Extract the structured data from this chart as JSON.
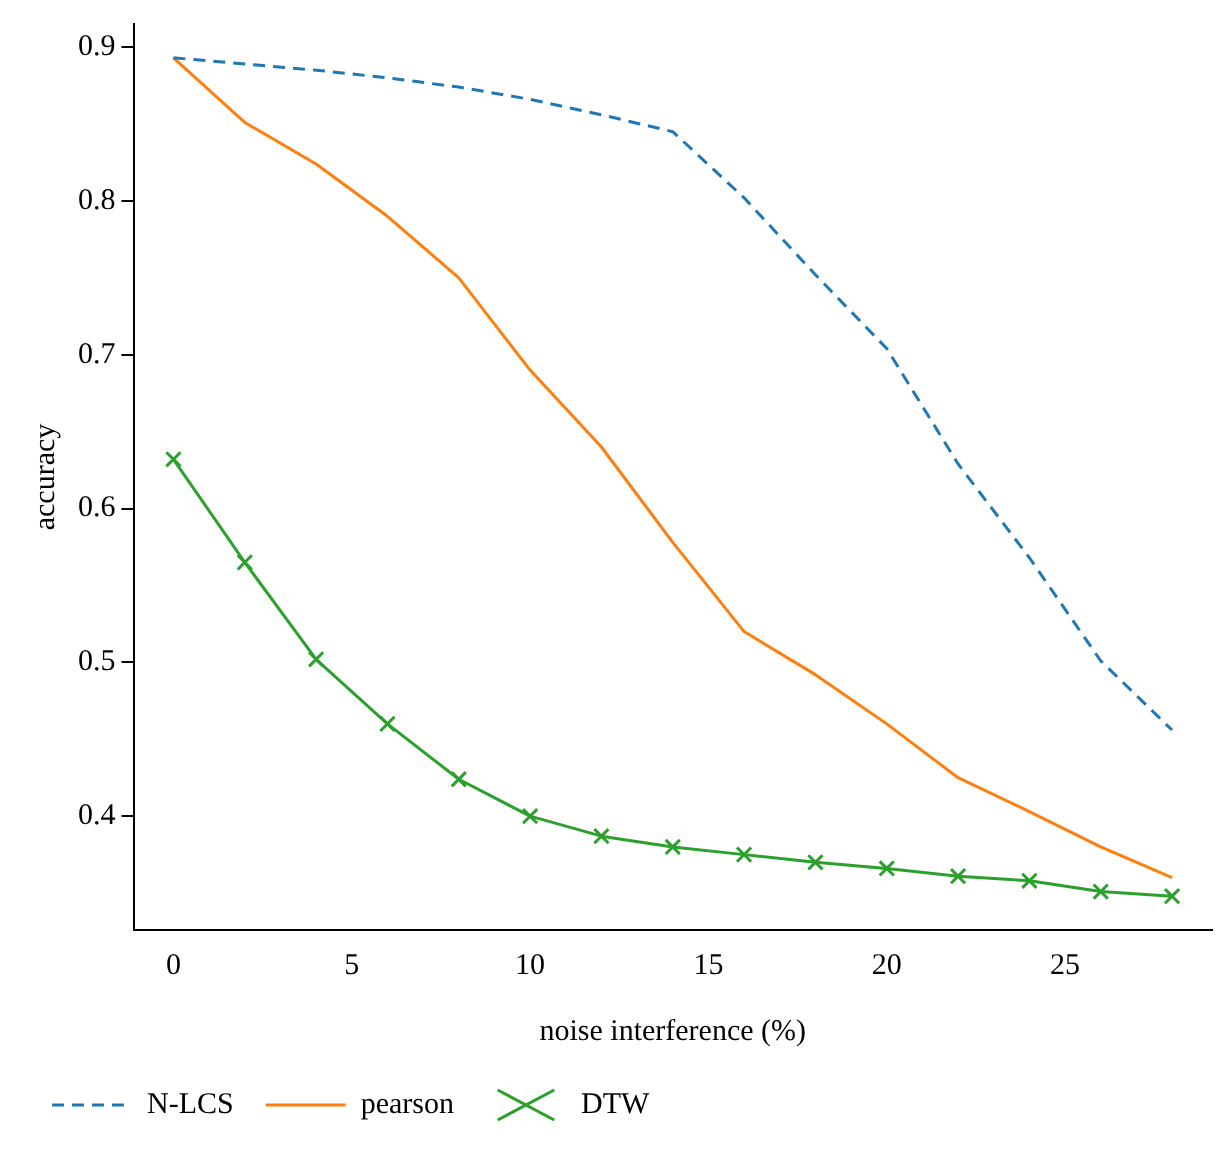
{
  "chart_data": {
    "type": "line",
    "xlabel": "noise interference (%)",
    "ylabel": "accuracy",
    "x": [
      0,
      2,
      4,
      6,
      8,
      10,
      12,
      14,
      16,
      18,
      20,
      22,
      24,
      26,
      28
    ],
    "xlim": [
      -1.12,
      29.12
    ],
    "xticks": [
      0,
      5,
      10,
      15,
      20,
      25
    ],
    "ylim": [
      0.326,
      0.915
    ],
    "yticks": [
      0.4,
      0.5,
      0.6,
      0.7,
      0.8,
      0.9
    ],
    "grid": false,
    "legend": "bottom left",
    "series": [
      {
        "name": "N-LCS",
        "color": "#1f77b4",
        "line_style": "dashed",
        "marker": "none",
        "values": [
          0.893,
          0.889,
          0.885,
          0.88,
          0.874,
          0.866,
          0.856,
          0.845,
          0.802,
          0.752,
          0.704,
          0.629,
          0.568,
          0.501,
          0.456
        ]
      },
      {
        "name": "pearson",
        "color": "#ff7f0e",
        "line_style": "solid",
        "marker": "none",
        "values": [
          0.893,
          0.851,
          0.824,
          0.79,
          0.75,
          0.69,
          0.64,
          0.578,
          0.52,
          0.492,
          0.46,
          0.425,
          0.403,
          0.38,
          0.36
        ]
      },
      {
        "name": "DTW",
        "color": "#2ca02c",
        "line_style": "solid",
        "marker": "cross",
        "values": [
          0.632,
          0.565,
          0.502,
          0.46,
          0.424,
          0.4,
          0.387,
          0.38,
          0.375,
          0.37,
          0.366,
          0.361,
          0.358,
          0.351,
          0.348
        ]
      }
    ]
  }
}
